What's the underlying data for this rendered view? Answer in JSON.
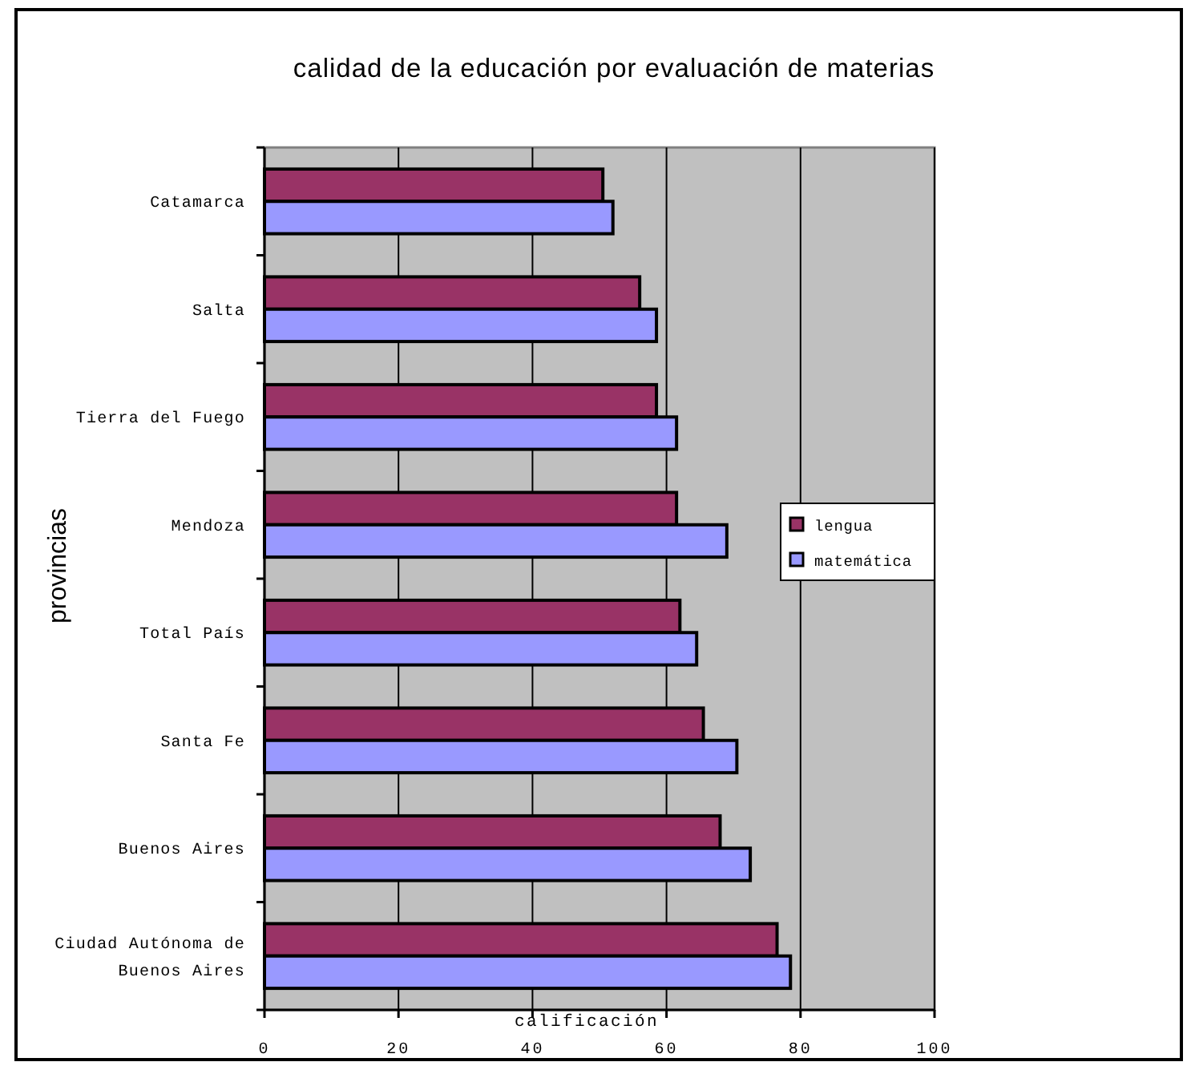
{
  "chart_data": {
    "type": "bar",
    "orientation": "horizontal",
    "title": "calidad de la educación por evaluación de materias",
    "xlabel": "calificación",
    "ylabel": "provincias",
    "categories": [
      "Catamarca",
      "Salta",
      "Tierra del Fuego",
      "Mendoza",
      "Total País",
      "Santa Fe",
      "Buenos Aires",
      "Ciudad Autónoma de Buenos Aires"
    ],
    "series": [
      {
        "name": "lengua",
        "color": "#993366",
        "values": [
          50.5,
          56,
          58.5,
          61.5,
          62,
          65.5,
          68,
          76.5
        ]
      },
      {
        "name": "matemática",
        "color": "#9999ff",
        "values": [
          52,
          58.5,
          61.5,
          69,
          64.5,
          70.5,
          72.5,
          78.5
        ]
      }
    ],
    "xlim": [
      0,
      100
    ],
    "xticks": [
      0,
      20,
      40,
      60,
      80,
      100
    ],
    "grid": "x",
    "legend": "right"
  }
}
